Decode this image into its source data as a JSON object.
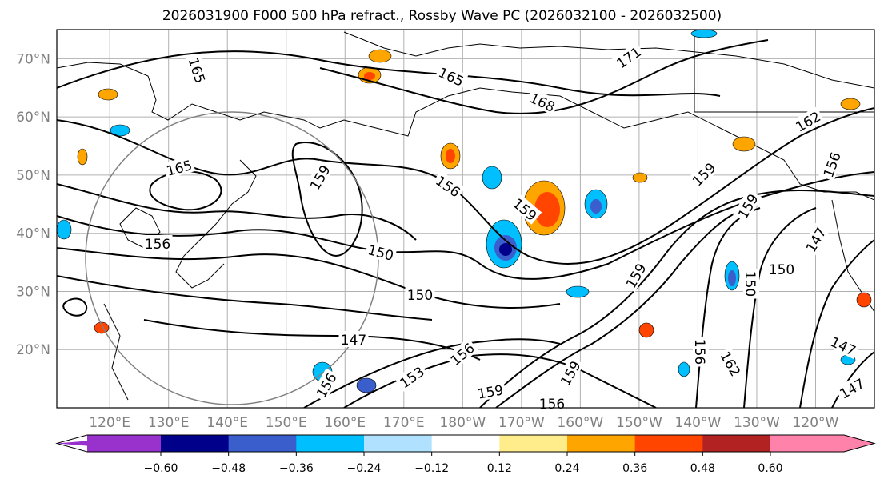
{
  "title": "2026031900 F000 500 hPa refract., Rossby Wave PC (2026032100 - 2026032500)",
  "map": {
    "lat_labels": [
      "70°N",
      "60°N",
      "50°N",
      "40°N",
      "30°N",
      "20°N"
    ],
    "lat_values": [
      70,
      60,
      50,
      40,
      30,
      20
    ],
    "lon_labels": [
      "120°E",
      "130°E",
      "140°E",
      "150°E",
      "160°E",
      "170°E",
      "180°W",
      "170°W",
      "160°W",
      "150°W",
      "140°W",
      "130°W",
      "120°W"
    ],
    "lon_values": [
      120,
      130,
      140,
      150,
      160,
      170,
      180,
      190,
      200,
      210,
      220,
      230,
      240
    ],
    "lon_range": [
      111,
      250
    ],
    "lat_range": [
      10,
      75
    ],
    "contour_labels": [
      "165",
      "165",
      "165",
      "168",
      "171",
      "162",
      "156",
      "159",
      "156",
      "156",
      "159",
      "159",
      "159",
      "150",
      "147",
      "150",
      "156",
      "159",
      "156",
      "153",
      "156",
      "159",
      "156",
      "150",
      "147",
      "147",
      "147",
      "159",
      "162",
      "150"
    ]
  },
  "colorbar": {
    "ticks": [
      "−0.60",
      "−0.48",
      "−0.36",
      "−0.24",
      "−0.12",
      "0.12",
      "0.24",
      "0.36",
      "0.48",
      "0.60"
    ],
    "tick_values": [
      -0.6,
      -0.48,
      -0.36,
      -0.24,
      -0.12,
      0.12,
      0.24,
      0.36,
      0.48,
      0.6
    ],
    "colors": [
      "#9932cc",
      "#00008b",
      "#3a5fcd",
      "#00bfff",
      "#b0e2ff",
      "#ffffff",
      "#ffec8b",
      "#ffa500",
      "#ff4500",
      "#b22222",
      "#ff82ab"
    ]
  }
}
